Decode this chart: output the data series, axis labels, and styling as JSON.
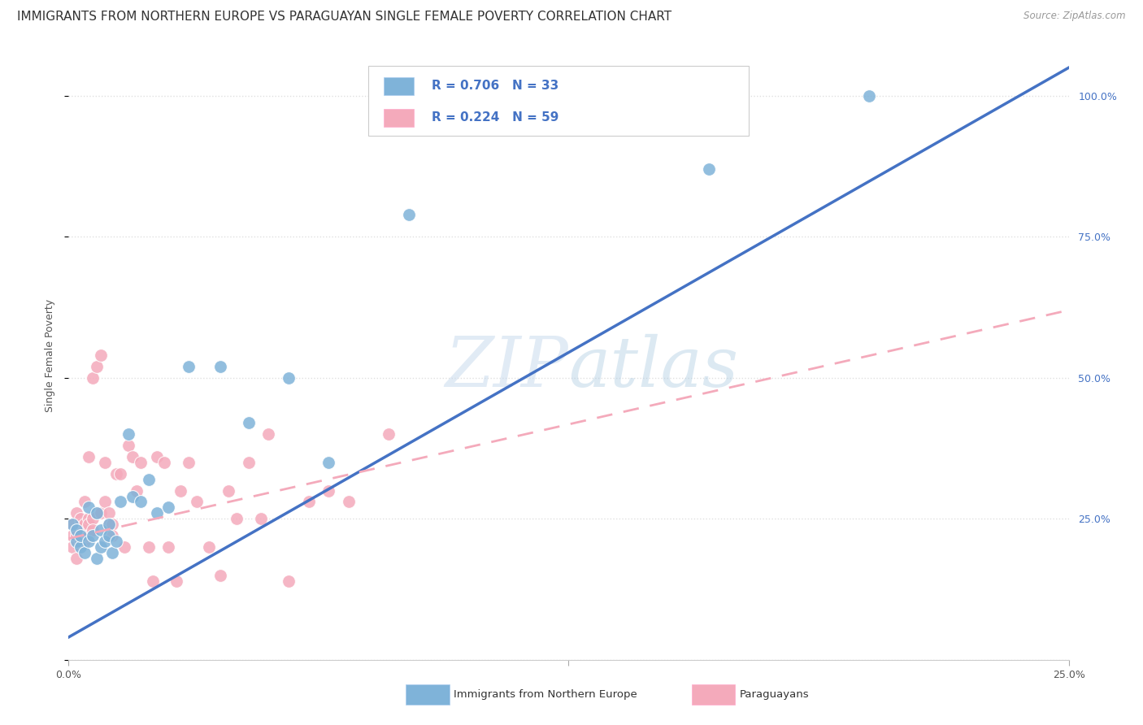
{
  "title": "IMMIGRANTS FROM NORTHERN EUROPE VS PARAGUAYAN SINGLE FEMALE POVERTY CORRELATION CHART",
  "source": "Source: ZipAtlas.com",
  "ylabel": "Single Female Poverty",
  "xlim": [
    0.0,
    0.25
  ],
  "ylim": [
    0.0,
    1.08
  ],
  "legend_label1": "Immigrants from Northern Europe",
  "legend_label2": "Paraguayans",
  "R1": "0.706",
  "N1": "33",
  "R2": "0.224",
  "N2": "59",
  "blue_dot_color": "#7FB3D9",
  "pink_dot_color": "#F4AABB",
  "blue_line_color": "#4472C4",
  "pink_line_color": "#F4AABB",
  "right_tick_color": "#4472C4",
  "grid_color": "#E0E0E0",
  "bg_color": "#FFFFFF",
  "watermark_color": "#C5D8EC",
  "blue_x": [
    0.001,
    0.002,
    0.002,
    0.003,
    0.003,
    0.004,
    0.005,
    0.005,
    0.006,
    0.007,
    0.007,
    0.008,
    0.008,
    0.009,
    0.01,
    0.01,
    0.011,
    0.012,
    0.013,
    0.015,
    0.016,
    0.018,
    0.02,
    0.022,
    0.025,
    0.03,
    0.038,
    0.045,
    0.055,
    0.065,
    0.085,
    0.16,
    0.2
  ],
  "blue_y": [
    0.24,
    0.21,
    0.23,
    0.2,
    0.22,
    0.19,
    0.21,
    0.27,
    0.22,
    0.18,
    0.26,
    0.23,
    0.2,
    0.21,
    0.24,
    0.22,
    0.19,
    0.21,
    0.28,
    0.4,
    0.29,
    0.28,
    0.32,
    0.26,
    0.27,
    0.52,
    0.52,
    0.42,
    0.5,
    0.35,
    0.79,
    0.87,
    1.0
  ],
  "pink_x": [
    0.001,
    0.001,
    0.001,
    0.002,
    0.002,
    0.002,
    0.002,
    0.003,
    0.003,
    0.003,
    0.003,
    0.004,
    0.004,
    0.004,
    0.005,
    0.005,
    0.005,
    0.005,
    0.006,
    0.006,
    0.006,
    0.007,
    0.007,
    0.008,
    0.008,
    0.009,
    0.009,
    0.01,
    0.01,
    0.011,
    0.011,
    0.012,
    0.013,
    0.014,
    0.015,
    0.016,
    0.017,
    0.018,
    0.02,
    0.021,
    0.022,
    0.024,
    0.025,
    0.027,
    0.028,
    0.03,
    0.032,
    0.035,
    0.038,
    0.04,
    0.042,
    0.045,
    0.048,
    0.05,
    0.055,
    0.06,
    0.065,
    0.07,
    0.08
  ],
  "pink_y": [
    0.22,
    0.24,
    0.2,
    0.23,
    0.22,
    0.18,
    0.26,
    0.24,
    0.22,
    0.21,
    0.25,
    0.28,
    0.24,
    0.21,
    0.25,
    0.24,
    0.22,
    0.36,
    0.25,
    0.23,
    0.5,
    0.26,
    0.52,
    0.54,
    0.26,
    0.28,
    0.35,
    0.24,
    0.26,
    0.24,
    0.22,
    0.33,
    0.33,
    0.2,
    0.38,
    0.36,
    0.3,
    0.35,
    0.2,
    0.14,
    0.36,
    0.35,
    0.2,
    0.14,
    0.3,
    0.35,
    0.28,
    0.2,
    0.15,
    0.3,
    0.25,
    0.35,
    0.25,
    0.4,
    0.14,
    0.28,
    0.3,
    0.28,
    0.4
  ],
  "blue_trend_x": [
    0.0,
    0.25
  ],
  "blue_trend_y": [
    0.04,
    1.05
  ],
  "pink_trend_x": [
    0.0,
    0.25
  ],
  "pink_trend_y": [
    0.215,
    0.62
  ],
  "title_fontsize": 11,
  "tick_fontsize": 9,
  "ylabel_fontsize": 9
}
